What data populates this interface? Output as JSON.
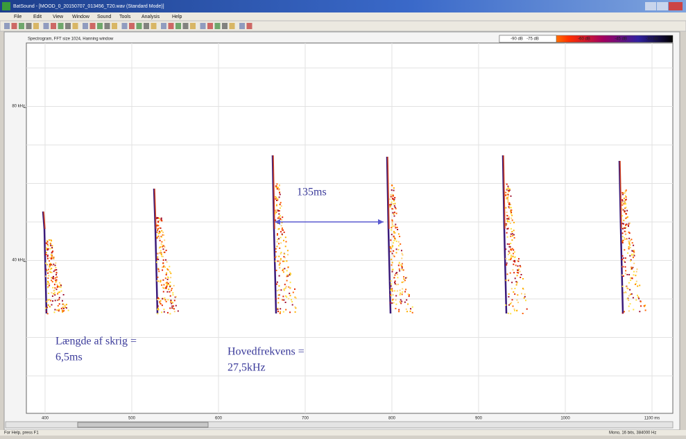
{
  "window": {
    "title": "BatSound - [MOOD_0_20150707_013456_T20.wav (Standard Mode)]",
    "menu": [
      "File",
      "Edit",
      "View",
      "Window",
      "Sound",
      "Tools",
      "Analysis",
      "Help"
    ]
  },
  "spectrogram": {
    "label": "Spectrogram, FFT size 1024, Hanning window",
    "legend": [
      "-90 dB",
      "-75 dB",
      "-60 dB",
      "-45 dB",
      "-30 dB"
    ],
    "y_labels": [
      "80 kHz",
      "40 kHz"
    ],
    "x_labels": [
      "400",
      "500",
      "600",
      "700",
      "800",
      "900",
      "1000",
      "1100 ms"
    ]
  },
  "annotations": {
    "interval": "135ms",
    "length": [
      "Længde af skrig =",
      "6,5ms"
    ],
    "main_frequency": [
      "Hovedfrekvens =",
      "27,5kHz"
    ]
  },
  "status": {
    "help": "For Help, press F1",
    "format": "Mono, 16 bits, 384000 Hz"
  }
}
